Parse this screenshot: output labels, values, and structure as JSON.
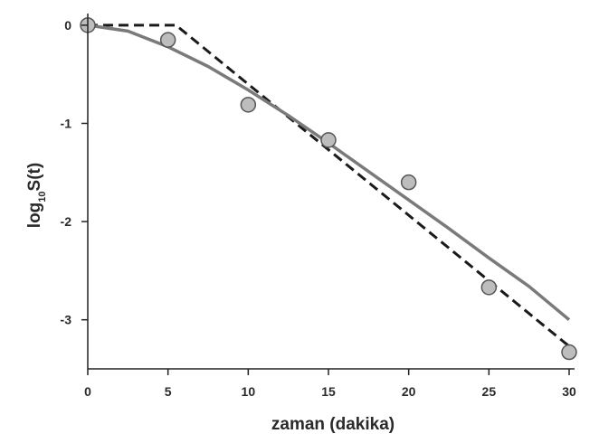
{
  "chart_data": {
    "type": "scatter",
    "title": "",
    "xlabel": "zaman (dakika)",
    "ylabel": {
      "base": "log",
      "subscript": "10",
      "rest": "S(t)"
    },
    "xlim": [
      0,
      30
    ],
    "ylim": [
      -3.5,
      0.1
    ],
    "xticks": [
      0,
      5,
      10,
      15,
      20,
      25,
      30
    ],
    "yticks": [
      0,
      -1,
      -2,
      -3
    ],
    "grid": false,
    "legend": "none",
    "series": [
      {
        "kind": "points",
        "x": [
          0,
          5,
          10,
          15,
          20,
          25,
          30
        ],
        "y": [
          0,
          -0.15,
          -0.81,
          -1.17,
          -1.6,
          -2.67,
          -3.33
        ],
        "color": "#bdbdbd",
        "stroke": "#555555"
      },
      {
        "kind": "line",
        "style": "dashed",
        "color": "#1a1a1a",
        "x": [
          0,
          5.5,
          30
        ],
        "y": [
          0,
          0,
          -3.27
        ]
      },
      {
        "kind": "line",
        "style": "solid",
        "color": "#7a7a7a",
        "x": [
          0,
          2.5,
          5,
          7.5,
          10,
          12.5,
          15,
          17.5,
          20,
          22.5,
          25,
          27.5,
          30
        ],
        "y": [
          0,
          -0.06,
          -0.22,
          -0.42,
          -0.66,
          -0.92,
          -1.2,
          -1.49,
          -1.78,
          -2.07,
          -2.37,
          -2.66,
          -3.0
        ]
      }
    ]
  }
}
